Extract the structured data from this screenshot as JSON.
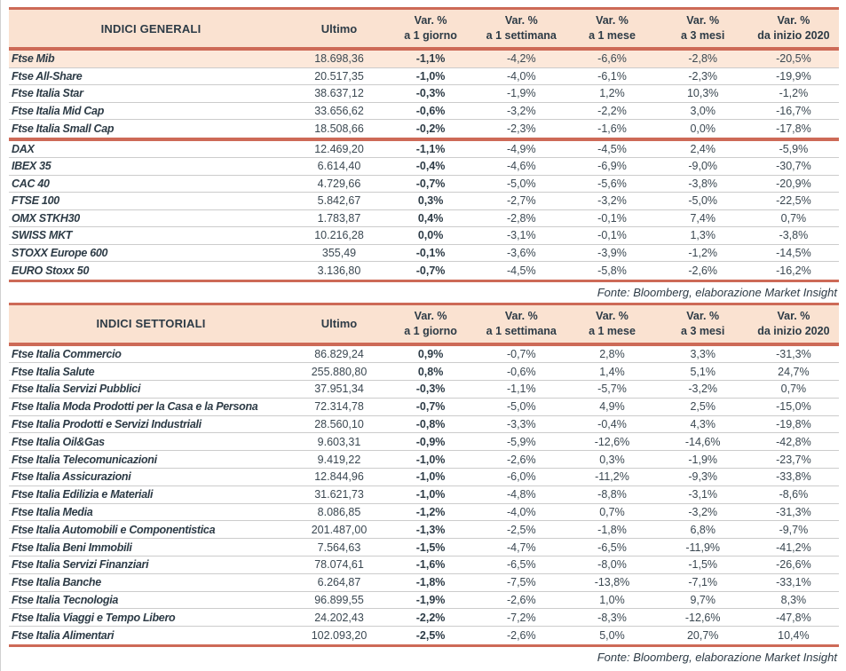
{
  "colors": {
    "accent_line": "#cd6a57",
    "header_bg": "#fae2d1",
    "highlight_row_bg": "#fce8da",
    "text": "#3b4852",
    "text_dark": "#2d3b46",
    "row_divider": "#cccccc"
  },
  "indici_generali": {
    "title": "INDICI GENERALI",
    "columns": {
      "ultimo": "Ultimo",
      "var_label": "Var. %",
      "periods": [
        "a 1 giorno",
        "a 1 settimana",
        "a 1 mese",
        "a 3 mesi",
        "da inizio 2020"
      ]
    },
    "groups": [
      {
        "rows": [
          {
            "name": "Ftse Mib",
            "ultimo": "18.698,36",
            "d1": "-1,1%",
            "w1": "-4,2%",
            "m1": "-6,6%",
            "m3": "-2,8%",
            "ytd": "-20,5%",
            "highlight": true
          },
          {
            "name": "Ftse All-Share",
            "ultimo": "20.517,35",
            "d1": "-1,0%",
            "w1": "-4,0%",
            "m1": "-6,1%",
            "m3": "-2,3%",
            "ytd": "-19,9%"
          },
          {
            "name": "Ftse Italia Star",
            "ultimo": "38.637,12",
            "d1": "-0,3%",
            "w1": "-1,9%",
            "m1": "1,2%",
            "m3": "10,3%",
            "ytd": "-1,2%"
          },
          {
            "name": "Ftse Italia Mid Cap",
            "ultimo": "33.656,62",
            "d1": "-0,6%",
            "w1": "-3,2%",
            "m1": "-2,2%",
            "m3": "3,0%",
            "ytd": "-16,7%"
          },
          {
            "name": "Ftse Italia Small Cap",
            "ultimo": "18.508,66",
            "d1": "-0,2%",
            "w1": "-2,3%",
            "m1": "-1,6%",
            "m3": "0,0%",
            "ytd": "-17,8%"
          }
        ]
      },
      {
        "rows": [
          {
            "name": "DAX",
            "ultimo": "12.469,20",
            "d1": "-1,1%",
            "w1": "-4,9%",
            "m1": "-4,5%",
            "m3": "2,4%",
            "ytd": "-5,9%"
          },
          {
            "name": "IBEX 35",
            "ultimo": "6.614,40",
            "d1": "-0,4%",
            "w1": "-4,6%",
            "m1": "-6,9%",
            "m3": "-9,0%",
            "ytd": "-30,7%"
          },
          {
            "name": "CAC 40",
            "ultimo": "4.729,66",
            "d1": "-0,7%",
            "w1": "-5,0%",
            "m1": "-5,6%",
            "m3": "-3,8%",
            "ytd": "-20,9%"
          },
          {
            "name": "FTSE 100",
            "ultimo": "5.842,67",
            "d1": "0,3%",
            "w1": "-2,7%",
            "m1": "-3,2%",
            "m3": "-5,0%",
            "ytd": "-22,5%"
          },
          {
            "name": "OMX STKH30",
            "ultimo": "1.783,87",
            "d1": "0,4%",
            "w1": "-2,8%",
            "m1": "-0,1%",
            "m3": "7,4%",
            "ytd": "0,7%"
          },
          {
            "name": "SWISS MKT",
            "ultimo": "10.216,28",
            "d1": "0,0%",
            "w1": "-3,1%",
            "m1": "-0,1%",
            "m3": "1,3%",
            "ytd": "-3,8%"
          },
          {
            "name": "STOXX Europe 600",
            "ultimo": "355,49",
            "d1": "-0,1%",
            "w1": "-3,6%",
            "m1": "-3,9%",
            "m3": "-1,2%",
            "ytd": "-14,5%"
          },
          {
            "name": "EURO Stoxx 50",
            "ultimo": "3.136,80",
            "d1": "-0,7%",
            "w1": "-4,5%",
            "m1": "-5,8%",
            "m3": "-2,6%",
            "ytd": "-16,2%"
          }
        ]
      }
    ],
    "fonte": "Fonte: Bloomberg, elaborazione Market Insight"
  },
  "indici_settoriali": {
    "title": "INDICI SETTORIALI",
    "columns": {
      "ultimo": "Ultimo",
      "var_label": "Var. %",
      "periods": [
        "a 1 giorno",
        "a 1 settimana",
        "a 1 mese",
        "a 3 mesi",
        "da inizio 2020"
      ]
    },
    "rows": [
      {
        "name": "Ftse Italia Commercio",
        "ultimo": "86.829,24",
        "d1": "0,9%",
        "w1": "-0,7%",
        "m1": "2,8%",
        "m3": "3,3%",
        "ytd": "-31,3%"
      },
      {
        "name": "Ftse Italia Salute",
        "ultimo": "255.880,80",
        "d1": "0,8%",
        "w1": "-0,6%",
        "m1": "1,4%",
        "m3": "5,1%",
        "ytd": "24,7%"
      },
      {
        "name": "Ftse Italia Servizi Pubblici",
        "ultimo": "37.951,34",
        "d1": "-0,3%",
        "w1": "-1,1%",
        "m1": "-5,7%",
        "m3": "-3,2%",
        "ytd": "0,7%"
      },
      {
        "name": "Ftse Italia Moda Prodotti per la Casa e la Persona",
        "ultimo": "72.314,78",
        "d1": "-0,7%",
        "w1": "-5,0%",
        "m1": "4,9%",
        "m3": "2,5%",
        "ytd": "-15,0%"
      },
      {
        "name": "Ftse Italia Prodotti e Servizi Industriali",
        "ultimo": "28.560,10",
        "d1": "-0,8%",
        "w1": "-3,3%",
        "m1": "-0,4%",
        "m3": "4,3%",
        "ytd": "-19,8%"
      },
      {
        "name": "Ftse Italia Oil&Gas",
        "ultimo": "9.603,31",
        "d1": "-0,9%",
        "w1": "-5,9%",
        "m1": "-12,6%",
        "m3": "-14,6%",
        "ytd": "-42,8%"
      },
      {
        "name": "Ftse Italia Telecomunicazioni",
        "ultimo": "9.419,22",
        "d1": "-1,0%",
        "w1": "-2,6%",
        "m1": "0,3%",
        "m3": "-1,9%",
        "ytd": "-23,7%"
      },
      {
        "name": "Ftse Italia Assicurazioni",
        "ultimo": "12.844,96",
        "d1": "-1,0%",
        "w1": "-6,0%",
        "m1": "-11,2%",
        "m3": "-9,3%",
        "ytd": "-33,8%"
      },
      {
        "name": "Ftse Italia Edilizia e Materiali",
        "ultimo": "31.621,73",
        "d1": "-1,0%",
        "w1": "-4,8%",
        "m1": "-8,8%",
        "m3": "-3,1%",
        "ytd": "-8,6%"
      },
      {
        "name": "Ftse Italia Media",
        "ultimo": "8.086,85",
        "d1": "-1,2%",
        "w1": "-4,0%",
        "m1": "0,7%",
        "m3": "-3,2%",
        "ytd": "-31,3%"
      },
      {
        "name": "Ftse Italia Automobili e Componentistica",
        "ultimo": "201.487,00",
        "d1": "-1,3%",
        "w1": "-2,5%",
        "m1": "-1,8%",
        "m3": "6,8%",
        "ytd": "-9,7%"
      },
      {
        "name": "Ftse Italia Beni Immobili",
        "ultimo": "7.564,63",
        "d1": "-1,5%",
        "w1": "-4,7%",
        "m1": "-6,5%",
        "m3": "-11,9%",
        "ytd": "-41,2%"
      },
      {
        "name": "Ftse Italia Servizi Finanziari",
        "ultimo": "78.074,61",
        "d1": "-1,6%",
        "w1": "-6,5%",
        "m1": "-8,0%",
        "m3": "-1,5%",
        "ytd": "-26,6%"
      },
      {
        "name": "Ftse Italia Banche",
        "ultimo": "6.264,87",
        "d1": "-1,8%",
        "w1": "-7,5%",
        "m1": "-13,8%",
        "m3": "-7,1%",
        "ytd": "-33,1%"
      },
      {
        "name": "Ftse Italia Tecnologia",
        "ultimo": "96.899,55",
        "d1": "-1,9%",
        "w1": "-2,6%",
        "m1": "1,0%",
        "m3": "9,7%",
        "ytd": "8,3%"
      },
      {
        "name": "Ftse Italia Viaggi e Tempo Libero",
        "ultimo": "24.202,43",
        "d1": "-2,2%",
        "w1": "-7,2%",
        "m1": "-8,3%",
        "m3": "-12,6%",
        "ytd": "-47,8%"
      },
      {
        "name": "Ftse Italia Alimentari",
        "ultimo": "102.093,20",
        "d1": "-2,5%",
        "w1": "-2,6%",
        "m1": "5,0%",
        "m3": "20,7%",
        "ytd": "10,4%"
      }
    ],
    "fonte": "Fonte: Bloomberg, elaborazione Market Insight"
  }
}
